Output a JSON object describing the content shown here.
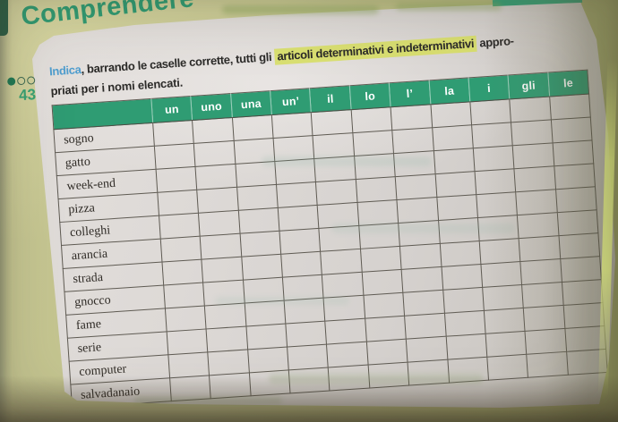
{
  "section_title": "Comprendere",
  "exercise": {
    "number": "43",
    "difficulty": {
      "filled": 1,
      "total": 3
    },
    "instruction": {
      "lead": "Indica",
      "after_lead": ", barrando le caselle corrette, tutti gli ",
      "highlighted": "articoli determinativi e indeterminativi",
      "after_highlight": " appro-",
      "line2": "priati per i nomi elencati."
    }
  },
  "table": {
    "corner_label": "",
    "columns": [
      "un",
      "uno",
      "una",
      "un’",
      "il",
      "lo",
      "l’",
      "la",
      "i",
      "gli",
      "le"
    ],
    "row_labels": [
      "sogno",
      "gatto",
      "week-end",
      "pizza",
      "colleghi",
      "arancia",
      "strada",
      "gnocco",
      "fame",
      "serie",
      "computer",
      "salvadanaio"
    ],
    "marked_cells": []
  },
  "colors": {
    "title_green": "#2f9b72",
    "table_header_green": "#2f9c73",
    "accent_blue": "#4f9ecf",
    "highlight_yellow": "#d8df5f",
    "page_background_olive": "#c2c38d",
    "paper": "#dcd8d5"
  }
}
